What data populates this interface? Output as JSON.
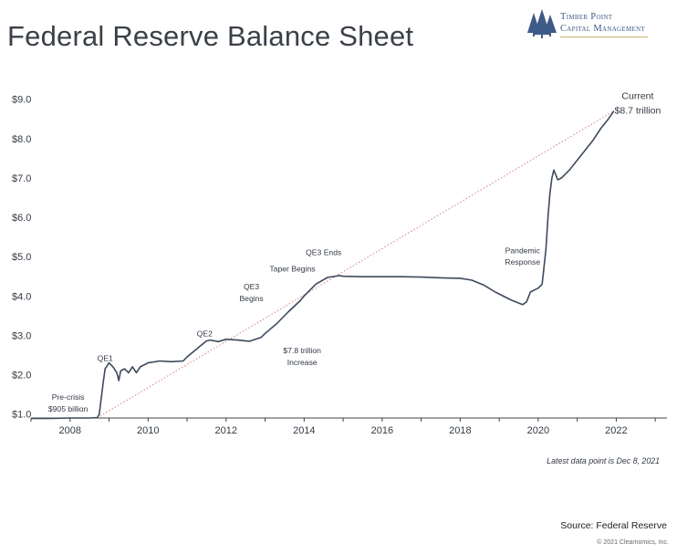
{
  "header": {
    "title": "Federal Reserve Balance Sheet"
  },
  "logo": {
    "line1": "Timber Point",
    "line2": "Capital Management",
    "icon": "pine-trees-icon"
  },
  "footer": {
    "note": "Latest data point is Dec 8, 2021",
    "source": "Source: Federal Reserve",
    "copyright": "© 2021 Clearnomics, Inc."
  },
  "colors": {
    "line": "#3d4a5c",
    "trend": "#d98a8f",
    "axis": "#444444",
    "title": "#3b4048",
    "logo": "#3e5a87"
  },
  "chart_data": {
    "type": "line",
    "title": "Federal Reserve Balance Sheet",
    "xlabel": "",
    "ylabel": "",
    "xlim": [
      2007.0,
      2023.3
    ],
    "ylim": [
      0.9,
      9.2
    ],
    "x_ticks": [
      2008,
      2010,
      2012,
      2014,
      2016,
      2018,
      2020,
      2022
    ],
    "x_tick_labels": [
      "2008",
      "2010",
      "2012",
      "2014",
      "2016",
      "2018",
      "2020",
      "2022"
    ],
    "y_ticks": [
      1,
      2,
      3,
      4,
      5,
      6,
      7,
      8,
      9
    ],
    "y_tick_labels": [
      "$1.0",
      "$2.0",
      "$3.0",
      "$4.0",
      "$5.0",
      "$6.0",
      "$7.0",
      "$8.0",
      "$9.0"
    ],
    "grid": false,
    "series": [
      {
        "unit": "trillions of dollars",
        "x": [
          2007.0,
          2007.5,
          2008.0,
          2008.5,
          2008.7,
          2008.75,
          2008.85,
          2008.9,
          2009.0,
          2009.1,
          2009.2,
          2009.25,
          2009.3,
          2009.4,
          2009.5,
          2009.6,
          2009.7,
          2009.8,
          2010.0,
          2010.3,
          2010.6,
          2010.9,
          2011.0,
          2011.3,
          2011.5,
          2011.6,
          2011.8,
          2012.0,
          2012.3,
          2012.6,
          2012.9,
          2013.0,
          2013.3,
          2013.6,
          2013.9,
          2014.0,
          2014.3,
          2014.6,
          2014.9,
          2015.0,
          2015.5,
          2016.0,
          2016.5,
          2017.0,
          2017.5,
          2018.0,
          2018.3,
          2018.6,
          2018.9,
          2019.0,
          2019.3,
          2019.6,
          2019.7,
          2019.8,
          2019.9,
          2020.0,
          2020.1,
          2020.2,
          2020.25,
          2020.3,
          2020.35,
          2020.4,
          2020.5,
          2020.6,
          2020.7,
          2020.8,
          2021.0,
          2021.2,
          2021.4,
          2021.6,
          2021.8,
          2021.94
        ],
        "y": [
          0.89,
          0.89,
          0.9,
          0.9,
          0.91,
          1.0,
          1.8,
          2.15,
          2.3,
          2.2,
          2.05,
          1.85,
          2.1,
          2.15,
          2.05,
          2.2,
          2.05,
          2.2,
          2.3,
          2.35,
          2.33,
          2.35,
          2.45,
          2.7,
          2.86,
          2.88,
          2.84,
          2.9,
          2.88,
          2.85,
          2.95,
          3.05,
          3.3,
          3.6,
          3.88,
          4.0,
          4.3,
          4.47,
          4.52,
          4.5,
          4.49,
          4.49,
          4.49,
          4.48,
          4.46,
          4.45,
          4.4,
          4.28,
          4.1,
          4.05,
          3.9,
          3.78,
          3.85,
          4.1,
          4.15,
          4.2,
          4.3,
          5.2,
          6.0,
          6.6,
          7.0,
          7.2,
          6.95,
          7.0,
          7.1,
          7.2,
          7.45,
          7.7,
          7.95,
          8.25,
          8.5,
          8.7
        ]
      }
    ],
    "trend_line": {
      "x": [
        2008.7,
        2021.94
      ],
      "y": [
        0.905,
        8.7
      ]
    },
    "annotations": [
      {
        "text": "Pre-crisis",
        "x": 2007.95,
        "y": 1.36
      },
      {
        "text": "$905 billion",
        "x": 2007.95,
        "y": 1.06
      },
      {
        "text": "QE1",
        "x": 2008.9,
        "y": 2.35
      },
      {
        "text": "QE2",
        "x": 2011.45,
        "y": 2.97
      },
      {
        "text": "QE3",
        "x": 2012.65,
        "y": 4.17
      },
      {
        "text": "Begins",
        "x": 2012.65,
        "y": 3.87
      },
      {
        "text": "Taper Begins",
        "x": 2013.7,
        "y": 4.62
      },
      {
        "text": "QE3 Ends",
        "x": 2014.5,
        "y": 5.04
      },
      {
        "text": "$7.8 trillion",
        "x": 2013.95,
        "y": 2.55
      },
      {
        "text": "Increase",
        "x": 2013.95,
        "y": 2.25
      },
      {
        "text": "Pandemic",
        "x": 2019.6,
        "y": 5.09
      },
      {
        "text": "Response",
        "x": 2019.6,
        "y": 4.79
      },
      {
        "text": "Current",
        "x": 2022.55,
        "y": 9.0,
        "size": "big"
      },
      {
        "text": "$8.7 trillion",
        "x": 2022.55,
        "y": 8.63,
        "size": "big"
      }
    ]
  }
}
